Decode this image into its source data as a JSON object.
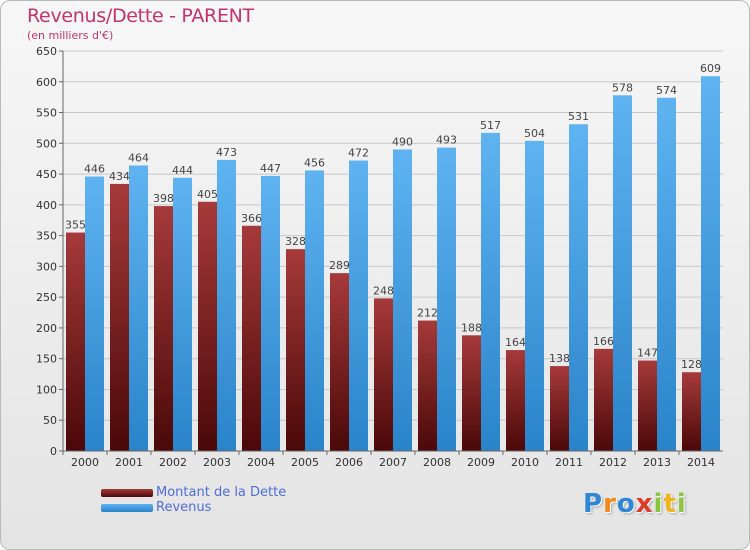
{
  "chart_data": {
    "type": "bar",
    "title": "Revenus/Dette - PARENT",
    "subtitle": "(en milliers d'€)",
    "categories": [
      "2000",
      "2001",
      "2002",
      "2003",
      "2004",
      "2005",
      "2006",
      "2007",
      "2008",
      "2009",
      "2010",
      "2011",
      "2012",
      "2013",
      "2014"
    ],
    "series": [
      {
        "name": "Montant de la Dette",
        "color": "#7a1f1f",
        "values": [
          355,
          434,
          398,
          405,
          366,
          328,
          289,
          248,
          212,
          188,
          164,
          138,
          166,
          147,
          128
        ]
      },
      {
        "name": "Revenus",
        "color": "#3b98e0",
        "values": [
          446,
          464,
          444,
          473,
          447,
          456,
          472,
          490,
          493,
          517,
          504,
          531,
          578,
          574,
          609
        ]
      }
    ],
    "ylim": [
      0,
      650
    ],
    "yticks": [
      0,
      50,
      100,
      150,
      200,
      250,
      300,
      350,
      400,
      450,
      500,
      550,
      600,
      650
    ],
    "grid": true,
    "legend_position": "bottom-left"
  },
  "logo": {
    "letters": [
      "P",
      "r",
      "o",
      "x",
      "i",
      "t",
      "i"
    ],
    "colors": [
      "#2e86d6",
      "#f08a1c",
      "#2e86d6",
      "#e03a2a",
      "#8bc53f",
      "#f0b41c",
      "#8bc53f"
    ]
  }
}
